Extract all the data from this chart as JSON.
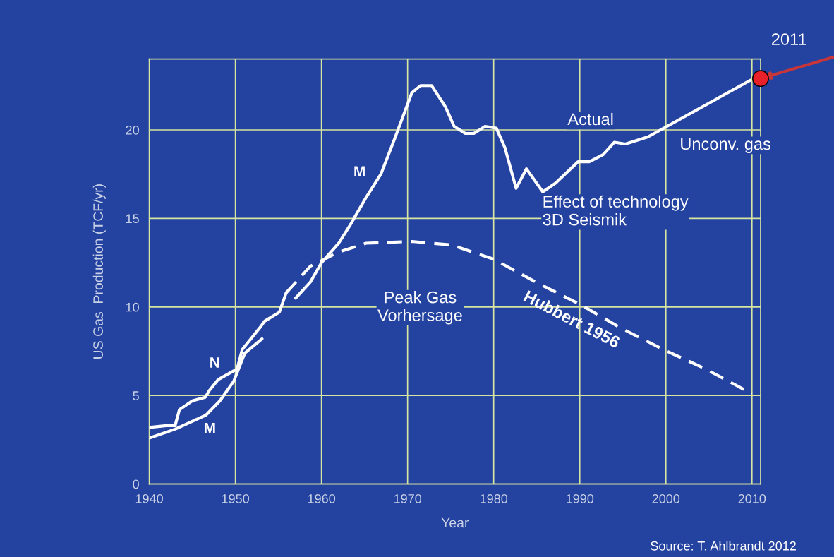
{
  "chart_data": {
    "type": "line",
    "xlabel": "Year",
    "ylabel": "US Gas  Production (TCF/yr)",
    "xlim": [
      1940,
      2011
    ],
    "ylim": [
      0,
      24
    ],
    "xticks": [
      1940,
      1950,
      1960,
      1970,
      1980,
      1990,
      2000,
      2010
    ],
    "yticks": [
      0,
      5,
      10,
      15,
      20
    ],
    "grid": true,
    "legend": false,
    "series": [
      {
        "color": "#ffffff",
        "line_style": "solid",
        "x": [
          1940,
          1942,
          1943,
          1943.5,
          1945,
          1946.5,
          1947,
          1948,
          1950.2,
          1950.8,
          1952.8,
          1953.4,
          1955.1,
          1955.9
        ],
        "values": [
          3.2,
          3.3,
          3.3,
          4.2,
          4.7,
          4.9,
          5.3,
          5.9,
          6.5,
          7.6,
          8.8,
          9.2,
          9.7,
          10.8
        ]
      },
      {
        "color": "#ffffff",
        "line_style": "solid",
        "x": [
          1940,
          1943,
          1946.6,
          1948.2,
          1949.8,
          1951.1,
          1953.1
        ],
        "values": [
          2.6,
          3.1,
          3.9,
          4.7,
          5.8,
          7.4,
          8.2
        ]
      },
      {
        "color": "#ffffff",
        "line_style": "solid",
        "x": [
          1957,
          1958.7,
          1960,
          1962,
          1963.3,
          1965.2,
          1966.9,
          1968.5,
          1970.5,
          1971.5,
          1972.8,
          1974.4,
          1975.4,
          1976.7,
          1977.7,
          1979,
          1980.3,
          1981.3,
          1982.6,
          1983.8,
          1985.7,
          1987.2,
          1989.8,
          1991.1,
          1992.7,
          1994,
          1995.3,
          1997.9,
          2009.8
        ],
        "values": [
          10.5,
          11.4,
          12.5,
          13.6,
          14.6,
          16.2,
          17.5,
          19.5,
          22.1,
          22.5,
          22.5,
          21.3,
          20.2,
          19.8,
          19.8,
          20.2,
          20.1,
          19.0,
          16.7,
          17.8,
          16.5,
          17.0,
          18.2,
          18.2,
          18.6,
          19.3,
          19.2,
          19.6,
          22.8
        ]
      },
      {
        "color": "#ffffff",
        "line_style": "dashed",
        "x": [
          1955.9,
          1958.7,
          1962,
          1965.2,
          1970.5,
          1975.1,
          1980,
          1984.9,
          1990.2,
          1994.8,
          1999.7,
          2004.6,
          2010
        ],
        "values": [
          10.8,
          12.3,
          13.1,
          13.6,
          13.7,
          13.5,
          12.7,
          11.4,
          10.1,
          8.8,
          7.6,
          6.5,
          5.1
        ]
      },
      {
        "type": "scatter",
        "color": "#e8202a",
        "marker": "circle",
        "x": [
          2011
        ],
        "values": [
          22.9
        ]
      }
    ],
    "annotations": [
      "M",
      "N",
      "M",
      "Actual",
      "Hubbert 1956",
      "Peak Gas\nVorhersage",
      "Effect of technology\n3D Seismik",
      "Unconv. gas",
      "2011",
      "Source: T. Ahlbrandt 2012"
    ]
  }
}
